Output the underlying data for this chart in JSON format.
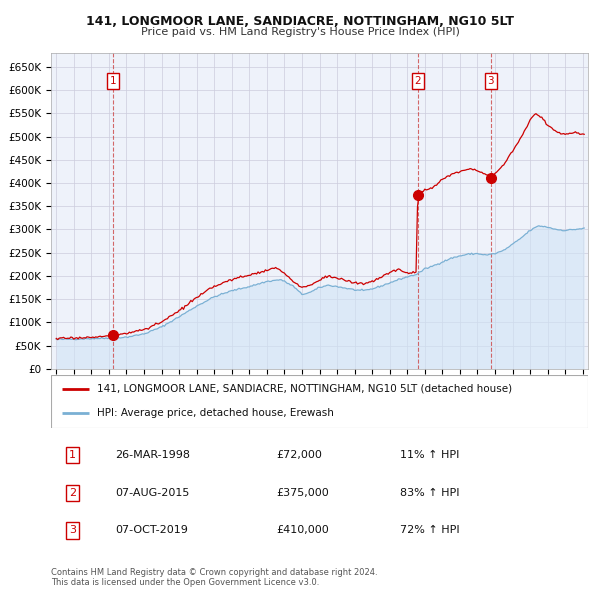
{
  "title": "141, LONGMOOR LANE, SANDIACRE, NOTTINGHAM, NG10 5LT",
  "subtitle": "Price paid vs. HM Land Registry's House Price Index (HPI)",
  "property_label": "141, LONGMOOR LANE, SANDIACRE, NOTTINGHAM, NG10 5LT (detached house)",
  "hpi_label": "HPI: Average price, detached house, Erewash",
  "property_color": "#cc0000",
  "hpi_color": "#7ab0d4",
  "hpi_fill_color": "#d0e4f5",
  "grid_color": "#ccccdd",
  "background_color": "#ffffff",
  "plot_bg_color": "#eef2fa",
  "sale_year_vals": [
    1998.23,
    2015.6,
    2019.77
  ],
  "sale_prices": [
    72000,
    375000,
    410000
  ],
  "sale_labels": [
    "1",
    "2",
    "3"
  ],
  "sale_annotations": [
    {
      "label": "1",
      "date": "26-MAR-1998",
      "price": "£72,000",
      "pct": "11% ↑ HPI"
    },
    {
      "label": "2",
      "date": "07-AUG-2015",
      "price": "£375,000",
      "pct": "83% ↑ HPI"
    },
    {
      "label": "3",
      "date": "07-OCT-2019",
      "price": "£410,000",
      "pct": "72% ↑ HPI"
    }
  ],
  "footer": "Contains HM Land Registry data © Crown copyright and database right 2024.\nThis data is licensed under the Open Government Licence v3.0.",
  "ylim": [
    0,
    680000
  ],
  "yticks": [
    0,
    50000,
    100000,
    150000,
    200000,
    250000,
    300000,
    350000,
    400000,
    450000,
    500000,
    550000,
    600000,
    650000
  ],
  "ytick_labels": [
    "£0",
    "£50K",
    "£100K",
    "£150K",
    "£200K",
    "£250K",
    "£300K",
    "£350K",
    "£400K",
    "£450K",
    "£500K",
    "£550K",
    "£600K",
    "£650K"
  ],
  "xlim": [
    1994.7,
    2025.3
  ],
  "hpi_anchors": [
    [
      1995.0,
      63000
    ],
    [
      1996.0,
      64000
    ],
    [
      1997.0,
      65000
    ],
    [
      1998.0,
      66000
    ],
    [
      1999.0,
      68000
    ],
    [
      2000.0,
      75000
    ],
    [
      2001.0,
      90000
    ],
    [
      2002.0,
      112000
    ],
    [
      2003.0,
      135000
    ],
    [
      2004.0,
      155000
    ],
    [
      2005.0,
      168000
    ],
    [
      2006.0,
      177000
    ],
    [
      2007.0,
      188000
    ],
    [
      2007.8,
      192000
    ],
    [
      2008.5,
      178000
    ],
    [
      2009.0,
      160000
    ],
    [
      2009.5,
      165000
    ],
    [
      2010.0,
      175000
    ],
    [
      2010.5,
      180000
    ],
    [
      2011.0,
      177000
    ],
    [
      2012.0,
      170000
    ],
    [
      2012.5,
      168000
    ],
    [
      2013.0,
      172000
    ],
    [
      2013.5,
      178000
    ],
    [
      2014.0,
      185000
    ],
    [
      2014.5,
      192000
    ],
    [
      2015.0,
      198000
    ],
    [
      2015.5,
      203000
    ],
    [
      2015.6,
      205000
    ],
    [
      2016.0,
      215000
    ],
    [
      2016.5,
      222000
    ],
    [
      2017.0,
      230000
    ],
    [
      2017.5,
      238000
    ],
    [
      2018.0,
      243000
    ],
    [
      2018.5,
      247000
    ],
    [
      2019.0,
      248000
    ],
    [
      2019.5,
      245000
    ],
    [
      2020.0,
      248000
    ],
    [
      2020.5,
      255000
    ],
    [
      2021.0,
      268000
    ],
    [
      2021.5,
      282000
    ],
    [
      2022.0,
      298000
    ],
    [
      2022.5,
      308000
    ],
    [
      2023.0,
      305000
    ],
    [
      2023.5,
      300000
    ],
    [
      2024.0,
      298000
    ],
    [
      2024.5,
      300000
    ],
    [
      2025.0,
      302000
    ]
  ],
  "prop_anchors": [
    [
      1995.0,
      65000
    ],
    [
      1996.0,
      66000
    ],
    [
      1997.0,
      68000
    ],
    [
      1998.0,
      70000
    ],
    [
      1998.23,
      72000
    ],
    [
      1999.0,
      76000
    ],
    [
      2000.0,
      85000
    ],
    [
      2001.0,
      100000
    ],
    [
      2002.0,
      125000
    ],
    [
      2003.0,
      153000
    ],
    [
      2004.0,
      178000
    ],
    [
      2005.0,
      192000
    ],
    [
      2006.0,
      202000
    ],
    [
      2007.0,
      212000
    ],
    [
      2007.5,
      218000
    ],
    [
      2008.0,
      205000
    ],
    [
      2008.5,
      188000
    ],
    [
      2009.0,
      175000
    ],
    [
      2009.5,
      180000
    ],
    [
      2010.0,
      192000
    ],
    [
      2010.5,
      200000
    ],
    [
      2011.0,
      195000
    ],
    [
      2012.0,
      185000
    ],
    [
      2012.5,
      183000
    ],
    [
      2013.0,
      188000
    ],
    [
      2013.5,
      197000
    ],
    [
      2014.0,
      207000
    ],
    [
      2014.5,
      215000
    ],
    [
      2015.0,
      205000
    ],
    [
      2015.5,
      208000
    ],
    [
      2015.6,
      375000
    ],
    [
      2016.0,
      385000
    ],
    [
      2016.5,
      392000
    ],
    [
      2017.0,
      408000
    ],
    [
      2017.5,
      418000
    ],
    [
      2018.0,
      425000
    ],
    [
      2018.5,
      432000
    ],
    [
      2019.0,
      428000
    ],
    [
      2019.5,
      418000
    ],
    [
      2019.77,
      410000
    ],
    [
      2020.0,
      420000
    ],
    [
      2020.5,
      440000
    ],
    [
      2021.0,
      468000
    ],
    [
      2021.5,
      500000
    ],
    [
      2022.0,
      535000
    ],
    [
      2022.3,
      550000
    ],
    [
      2022.7,
      540000
    ],
    [
      2023.0,
      525000
    ],
    [
      2023.5,
      510000
    ],
    [
      2024.0,
      505000
    ],
    [
      2024.5,
      510000
    ],
    [
      2025.0,
      505000
    ]
  ]
}
